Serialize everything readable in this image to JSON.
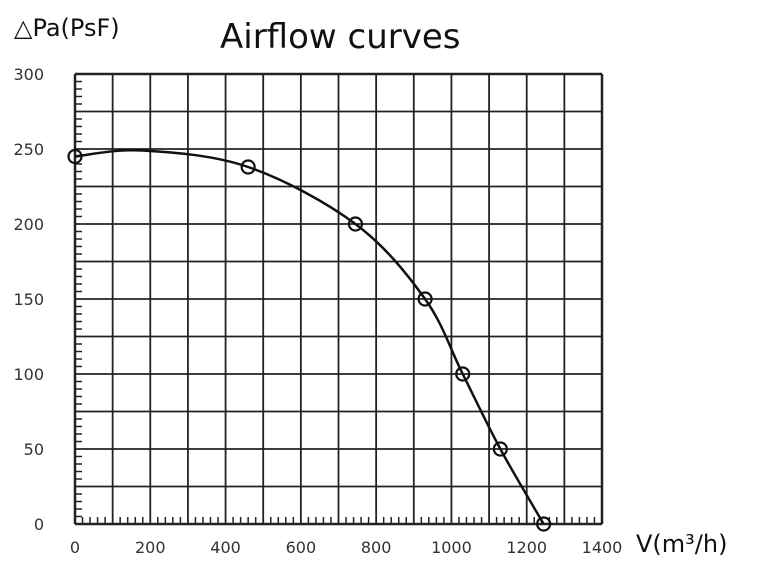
{
  "chart_data": {
    "type": "line",
    "title": "Airflow curves",
    "xlabel": "V(m³/h)",
    "ylabel": "△Pa(PsF)",
    "xlim": [
      0,
      1400
    ],
    "ylim": [
      0,
      300
    ],
    "x_major_step": 100,
    "y_major_step": 25,
    "x_minor_step": 20,
    "y_minor_step": 5,
    "xticks": [
      0,
      200,
      400,
      600,
      800,
      1000,
      1200,
      1400
    ],
    "yticks": [
      0,
      50,
      100,
      150,
      200,
      250,
      300
    ],
    "grid": true,
    "series": [
      {
        "name": "Airflow",
        "color": "#111111",
        "marker": "circle",
        "x": [
          0,
          460,
          745,
          930,
          1030,
          1130,
          1245
        ],
        "y": [
          245,
          238,
          200,
          150,
          100,
          50,
          0
        ],
        "curve_x": [
          0,
          180,
          460,
          745,
          930,
          1030,
          1130,
          1245
        ],
        "curve_y": [
          245,
          249,
          238,
          200,
          150,
          100,
          50,
          0
        ]
      }
    ]
  }
}
